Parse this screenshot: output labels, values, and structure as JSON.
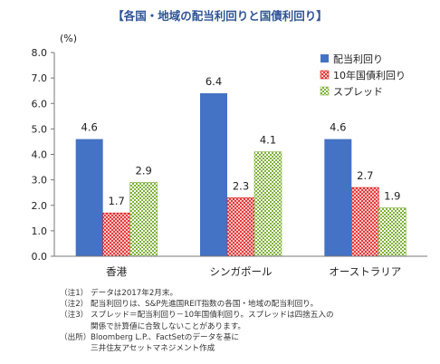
{
  "colors": {
    "series1": "#4472C4",
    "series2": "#E02020",
    "series3": "#7FB23A",
    "axis": "#777777",
    "title": "#2F5496"
  },
  "chart_data": {
    "type": "bar",
    "title": "【各国・地域の配当利回りと国債利回り】",
    "ylabel": "(%)",
    "xlabel": "",
    "ylim": [
      0,
      8
    ],
    "yticks": [
      "0.0",
      "1.0",
      "2.0",
      "3.0",
      "4.0",
      "5.0",
      "6.0",
      "7.0",
      "8.0"
    ],
    "grid": false,
    "legend_position": "top-right",
    "categories": [
      "香港",
      "シンガポール",
      "オーストラリア"
    ],
    "series": [
      {
        "name": "配当利回り",
        "values": [
          4.6,
          6.4,
          4.6
        ],
        "pattern": "solid"
      },
      {
        "name": "10年国債利回り",
        "values": [
          1.7,
          2.3,
          2.7
        ],
        "pattern": "cross"
      },
      {
        "name": "スプレッド",
        "values": [
          2.9,
          4.1,
          1.9
        ],
        "pattern": "check"
      }
    ]
  },
  "notes": [
    {
      "tag": "（注1）",
      "lines": [
        "データは2017年2月末。"
      ]
    },
    {
      "tag": "（注2）",
      "lines": [
        "配当利回りは、S&P先進国REIT指数の各国・地域の配当利回り。"
      ]
    },
    {
      "tag": "（注3）",
      "lines": [
        "スプレッド＝配当利回り－10年国債利回り。スプレッドは四捨五入の",
        "関係で計算値に合致しないことがあります。"
      ]
    },
    {
      "tag": "（出所）",
      "lines": [
        "Bloomberg L.P.、FactSetのデータを基に",
        "三井住友アセットマネジメント作成"
      ]
    }
  ]
}
